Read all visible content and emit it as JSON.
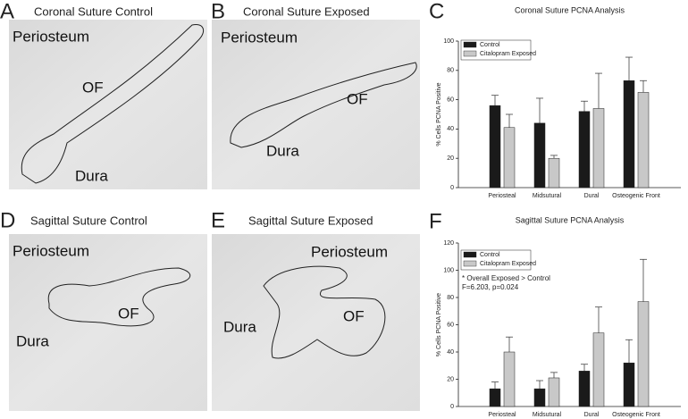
{
  "panels": [
    {
      "letter": "A",
      "title": "Coronal Suture Control",
      "labels": [
        "Periosteum",
        "OF",
        "Dura"
      ]
    },
    {
      "letter": "B",
      "title": "Coronal Suture Exposed",
      "labels": [
        "Periosteum",
        "OF",
        "Dura"
      ]
    },
    {
      "letter": "D",
      "title": "Sagittal Suture Control",
      "labels": [
        "Periosteum",
        "OF",
        "Dura"
      ]
    },
    {
      "letter": "E",
      "title": "Sagittal Suture Exposed",
      "labels": [
        "Periosteum",
        "OF",
        "Dura"
      ]
    }
  ],
  "chart_data": [
    {
      "type": "bar",
      "panel": "C",
      "title": "Coronal Suture PCNA Analysis",
      "y_label": "% Cells PCNA Positive",
      "categories": [
        "Periosteal",
        "Midsutural",
        "Dural",
        "Osteogenic Front"
      ],
      "series": [
        {
          "name": "Control",
          "color": "#1a1a1a",
          "values": [
            56,
            44,
            52,
            73
          ],
          "errors": [
            7,
            17,
            7,
            16
          ]
        },
        {
          "name": "Citalopram Exposed",
          "color": "#c8c8c8",
          "values": [
            41,
            20,
            54,
            65
          ],
          "errors": [
            9,
            2,
            24,
            8
          ]
        }
      ],
      "ylim": [
        0,
        100
      ],
      "yticks": [
        0,
        20,
        40,
        60,
        80,
        100
      ]
    },
    {
      "type": "bar",
      "panel": "F",
      "title": "Sagittal Suture PCNA Analysis",
      "y_label": "% Cells PCNA Positive",
      "annotations": [
        "* Overall Exposed > Control",
        "F=6.203, p=0.024"
      ],
      "categories": [
        "Periosteal",
        "Midsutural",
        "Dural",
        "Osteogenic Front"
      ],
      "series": [
        {
          "name": "Control",
          "color": "#1a1a1a",
          "values": [
            13,
            13,
            26,
            32
          ],
          "errors": [
            5,
            6,
            5,
            17
          ]
        },
        {
          "name": "Citalopram Exposed",
          "color": "#c8c8c8",
          "values": [
            40,
            21,
            54,
            77
          ],
          "errors": [
            11,
            4,
            19,
            31
          ]
        }
      ],
      "ylim": [
        0,
        120
      ],
      "yticks": [
        0,
        20,
        40,
        60,
        80,
        100,
        120
      ]
    }
  ]
}
